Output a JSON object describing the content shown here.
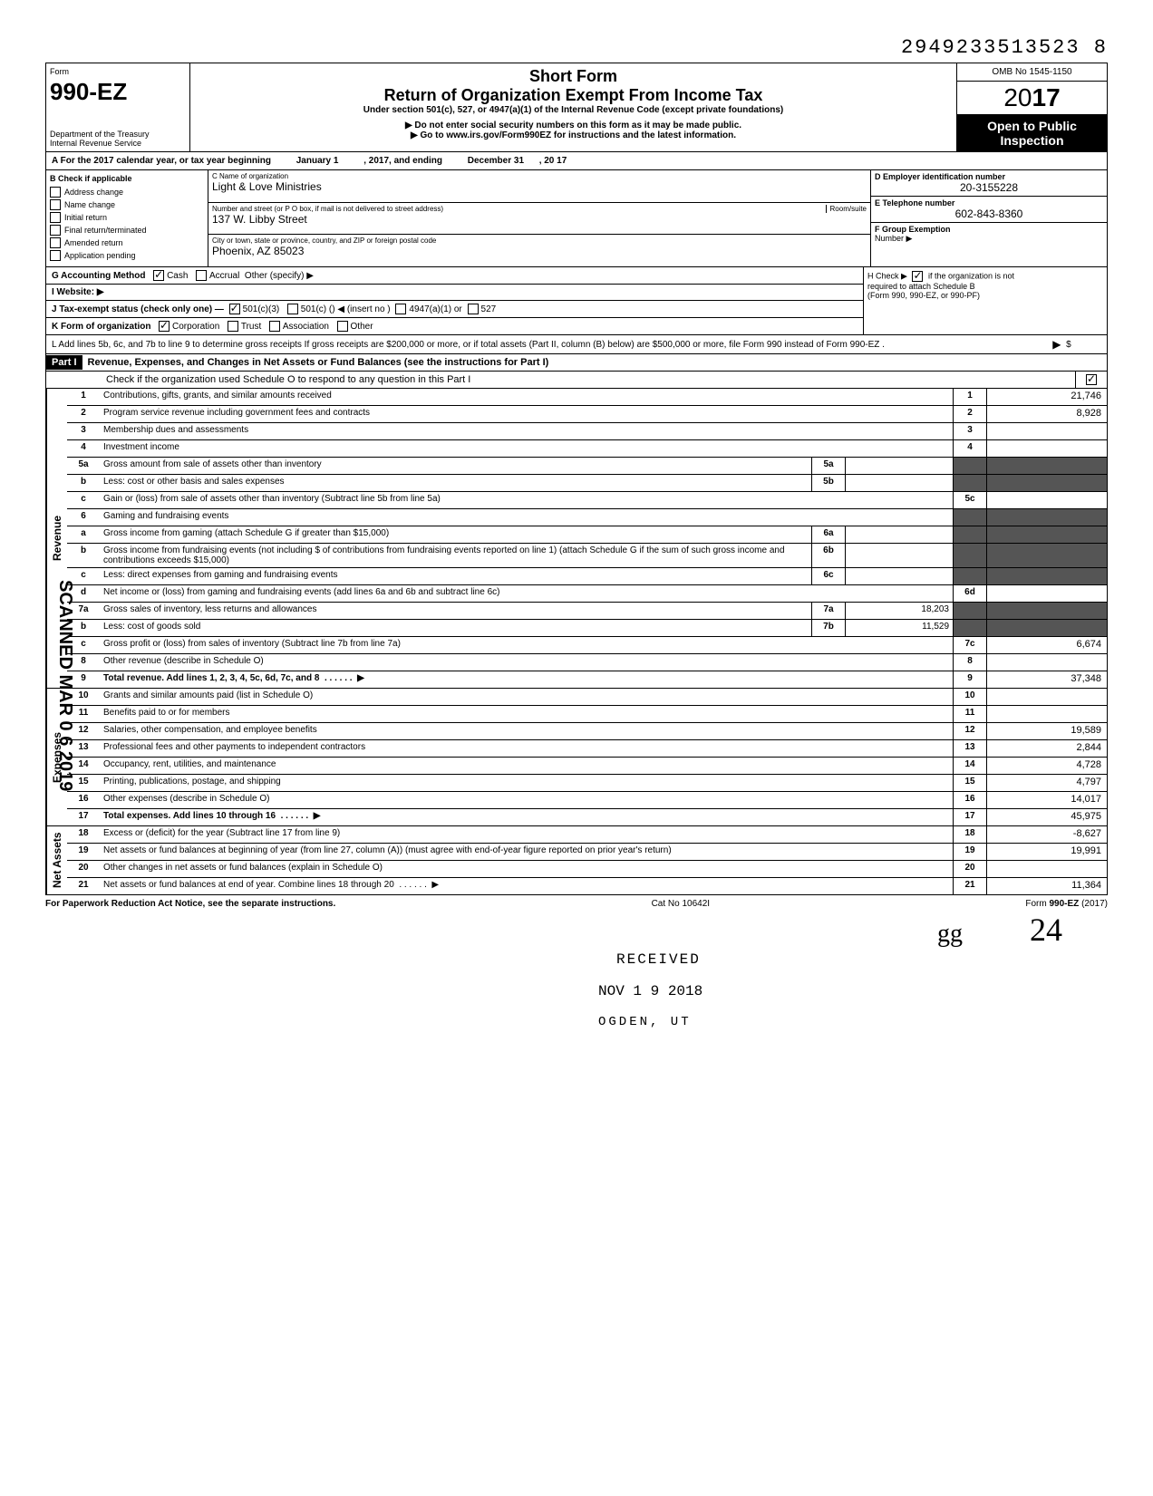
{
  "filing_number": "2949233513523 8",
  "form": {
    "label_form": "Form",
    "number": "990-EZ",
    "dept1": "Department of the Treasury",
    "dept2": "Internal Revenue Service",
    "short_form": "Short Form",
    "title": "Return of Organization Exempt From Income Tax",
    "subtitle": "Under section 501(c), 527, or 4947(a)(1) of the Internal Revenue Code (except private foundations)",
    "warning": "▶ Do not enter social security numbers on this form as it may be made public.",
    "goto": "▶ Go to www.irs.gov/Form990EZ for instructions and the latest information.",
    "omb": "OMB No 1545-1150",
    "year_prefix": "20",
    "year_suffix": "17",
    "open1": "Open to Public",
    "open2": "Inspection"
  },
  "row_a": {
    "prefix": "A  For the 2017 calendar year, or tax year beginning",
    "begin": "January 1",
    "mid": ", 2017, and ending",
    "end": "December 31",
    "suffix": ", 20",
    "suffix_val": "17"
  },
  "section_b": {
    "heading": "B  Check if applicable",
    "items": [
      "Address change",
      "Name change",
      "Initial return",
      "Final return/terminated",
      "Amended return",
      "Application pending"
    ]
  },
  "section_c": {
    "label_name": "C  Name of organization",
    "name": "Light & Love Ministries",
    "label_street": "Number and street (or P O  box, if mail is not delivered to street address)",
    "room_label": "Room/suite",
    "street": "137 W. Libby Street",
    "label_city": "City or town, state or province, country, and ZIP or foreign postal code",
    "city": "Phoenix, AZ 85023"
  },
  "section_d": {
    "label": "D Employer identification number",
    "value": "20-3155228"
  },
  "section_e": {
    "label": "E Telephone number",
    "value": "602-843-8360"
  },
  "section_f": {
    "label": "F Group Exemption",
    "label2": "Number ▶"
  },
  "meta": {
    "g": "G  Accounting Method",
    "g_cash": "Cash",
    "g_accrual": "Accrual",
    "g_other": "Other (specify) ▶",
    "i": "I   Website: ▶",
    "j": "J  Tax-exempt status (check only one) —",
    "j_501c3": "501(c)(3)",
    "j_501c": "501(c) (",
    "j_insert": ") ◀ (insert no )",
    "j_4947": "4947(a)(1) or",
    "j_527": "527",
    "k": "K  Form of organization",
    "k_corp": "Corporation",
    "k_trust": "Trust",
    "k_assoc": "Association",
    "k_other": "Other",
    "l": "L  Add lines 5b, 6c, and 7b to line 9 to determine gross receipts  If gross receipts are $200,000 or more, or if total assets (Part II, column (B) below) are $500,000 or more, file Form 990 instead of Form 990-EZ .",
    "l_arrow": "▶",
    "l_dollar": "$",
    "h1": "H  Check ▶",
    "h2": "if the organization is not",
    "h3": "required to attach Schedule B",
    "h4": "(Form 990, 990-EZ, or 990-PF)"
  },
  "part1": {
    "label": "Part I",
    "title": "Revenue, Expenses, and Changes in Net Assets or Fund Balances (see the instructions for Part I)",
    "subtitle": "Check if the organization used Schedule O to respond to any question in this Part I"
  },
  "sections": {
    "revenue_label": "Revenue",
    "expenses_label": "Expenses",
    "netassets_label": "Net Assets"
  },
  "lines": [
    {
      "num": "1",
      "desc": "Contributions, gifts, grants, and similar amounts received",
      "rnum": "1",
      "rval": "21,746"
    },
    {
      "num": "2",
      "desc": "Program service revenue including government fees and contracts",
      "rnum": "2",
      "rval": "8,928"
    },
    {
      "num": "3",
      "desc": "Membership dues and assessments",
      "rnum": "3",
      "rval": ""
    },
    {
      "num": "4",
      "desc": "Investment income",
      "rnum": "4",
      "rval": ""
    },
    {
      "num": "5a",
      "desc": "Gross amount from sale of assets other than inventory",
      "mnum": "5a",
      "mval": "",
      "shaded_right": true
    },
    {
      "num": "b",
      "desc": "Less: cost or other basis and sales expenses",
      "mnum": "5b",
      "mval": "",
      "shaded_right": true
    },
    {
      "num": "c",
      "desc": "Gain or (loss) from sale of assets other than inventory (Subtract line 5b from line 5a)",
      "rnum": "5c",
      "rval": ""
    },
    {
      "num": "6",
      "desc": "Gaming and fundraising events",
      "shaded_right": true,
      "shaded_rnum": true
    },
    {
      "num": "a",
      "desc": "Gross income from gaming (attach Schedule G if greater than $15,000)",
      "mnum": "6a",
      "mval": "",
      "shaded_right": true
    },
    {
      "num": "b",
      "desc": "Gross income from fundraising events (not including  $                    of contributions from fundraising events reported on line 1) (attach Schedule G if the sum of such gross income and contributions exceeds $15,000)",
      "mnum": "6b",
      "mval": "",
      "shaded_right": true
    },
    {
      "num": "c",
      "desc": "Less: direct expenses from gaming and fundraising events",
      "mnum": "6c",
      "mval": "",
      "shaded_right": true
    },
    {
      "num": "d",
      "desc": "Net income or (loss) from gaming and fundraising events (add lines 6a and 6b and subtract line 6c)",
      "rnum": "6d",
      "rval": ""
    },
    {
      "num": "7a",
      "desc": "Gross sales of inventory, less returns and allowances",
      "mnum": "7a",
      "mval": "18,203",
      "shaded_right": true
    },
    {
      "num": "b",
      "desc": "Less: cost of goods sold",
      "mnum": "7b",
      "mval": "11,529",
      "shaded_right": true
    },
    {
      "num": "c",
      "desc": "Gross profit or (loss) from sales of inventory (Subtract line 7b from line 7a)",
      "rnum": "7c",
      "rval": "6,674"
    },
    {
      "num": "8",
      "desc": "Other revenue (describe in Schedule O)",
      "rnum": "8",
      "rval": ""
    },
    {
      "num": "9",
      "desc": "Total revenue. Add lines 1, 2, 3, 4, 5c, 6d, 7c, and 8",
      "rnum": "9",
      "rval": "37,348",
      "bold": true,
      "arrow": true
    }
  ],
  "expense_lines": [
    {
      "num": "10",
      "desc": "Grants and similar amounts paid (list in Schedule O)",
      "rnum": "10",
      "rval": ""
    },
    {
      "num": "11",
      "desc": "Benefits paid to or for members",
      "rnum": "11",
      "rval": ""
    },
    {
      "num": "12",
      "desc": "Salaries, other compensation, and employee benefits",
      "rnum": "12",
      "rval": "19,589"
    },
    {
      "num": "13",
      "desc": "Professional fees and other payments to independent contractors",
      "rnum": "13",
      "rval": "2,844"
    },
    {
      "num": "14",
      "desc": "Occupancy, rent, utilities, and maintenance",
      "rnum": "14",
      "rval": "4,728"
    },
    {
      "num": "15",
      "desc": "Printing, publications, postage, and shipping",
      "rnum": "15",
      "rval": "4,797"
    },
    {
      "num": "16",
      "desc": "Other expenses (describe in Schedule O)",
      "rnum": "16",
      "rval": "14,017"
    },
    {
      "num": "17",
      "desc": "Total expenses. Add lines 10 through 16",
      "rnum": "17",
      "rval": "45,975",
      "bold": true,
      "arrow": true
    }
  ],
  "netasset_lines": [
    {
      "num": "18",
      "desc": "Excess or (deficit) for the year (Subtract line 17 from line 9)",
      "rnum": "18",
      "rval": "-8,627"
    },
    {
      "num": "19",
      "desc": "Net assets or fund balances at beginning of year (from line 27, column (A)) (must agree with end-of-year figure reported on prior year's return)",
      "rnum": "19",
      "rval": "19,991",
      "shaded_top": true
    },
    {
      "num": "20",
      "desc": "Other changes in net assets or fund balances (explain in Schedule O)",
      "rnum": "20",
      "rval": ""
    },
    {
      "num": "21",
      "desc": "Net assets or fund balances at end of year. Combine lines 18 through 20",
      "rnum": "21",
      "rval": "11,364",
      "arrow": true
    }
  ],
  "footer": {
    "left": "For Paperwork Reduction Act Notice, see the separate instructions.",
    "center": "Cat  No  10642I",
    "right": "Form 990-EZ (2017)"
  },
  "stamps": {
    "scanned": "SCANNED MAR 0 6 2019",
    "received": "RECEIVED",
    "date": "NOV 1 9 2018",
    "ogden": "OGDEN, UT",
    "hand1": "gg",
    "hand2": "24"
  }
}
